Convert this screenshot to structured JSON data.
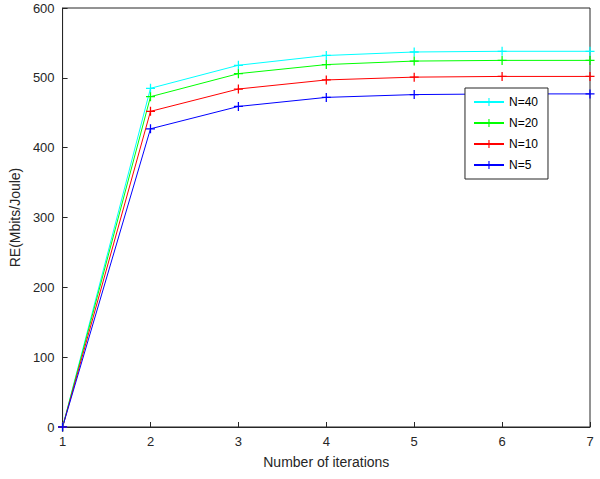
{
  "chart_data": {
    "type": "line",
    "x": [
      1,
      2,
      3,
      4,
      5,
      6,
      7
    ],
    "xlabel": "Number of iterations",
    "ylabel": "RE(Mbits/Joule)",
    "xlim": [
      1,
      7
    ],
    "xticks": [
      1,
      2,
      3,
      4,
      5,
      6,
      7
    ],
    "ylim": [
      0,
      600
    ],
    "yticks": [
      0,
      100,
      200,
      300,
      400,
      500,
      600
    ],
    "grid": false,
    "legend": "right",
    "marker": "plus",
    "series": [
      {
        "name": "N=40",
        "color": "#00ffff",
        "values": [
          0,
          485,
          518,
          532,
          537,
          538,
          538
        ]
      },
      {
        "name": "N=20",
        "color": "#00ff00",
        "values": [
          0,
          473,
          506,
          519,
          524,
          525,
          525
        ]
      },
      {
        "name": "N=10",
        "color": "#ff0000",
        "values": [
          0,
          452,
          484,
          497,
          501,
          502,
          502
        ]
      },
      {
        "name": "N=5",
        "color": "#0000ff",
        "values": [
          0,
          427,
          459,
          472,
          476,
          477,
          477
        ]
      }
    ]
  }
}
